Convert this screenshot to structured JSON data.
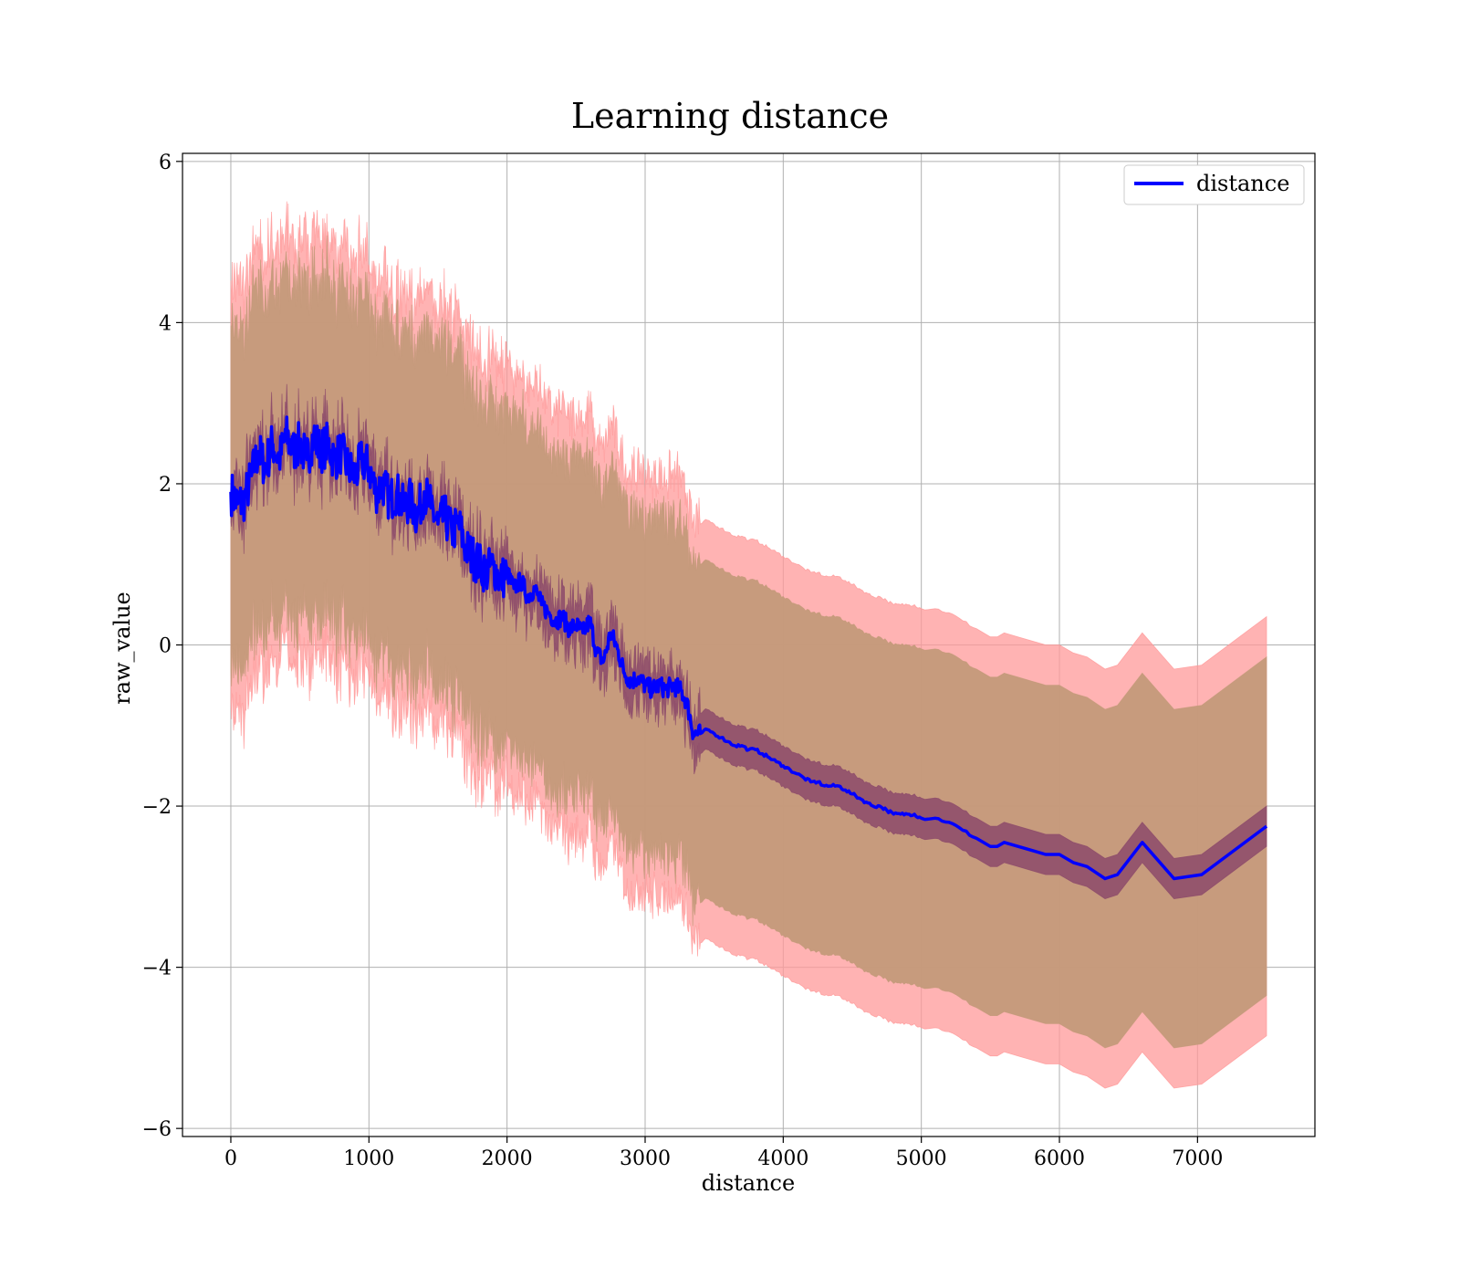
{
  "chart_data": {
    "type": "line",
    "title": "Learning distance",
    "xlabel": "distance",
    "ylabel": "raw_value",
    "xlim": [
      -350,
      7850
    ],
    "ylim": [
      -6.1,
      6.1
    ],
    "xticks": [
      0,
      1000,
      2000,
      3000,
      4000,
      5000,
      6000,
      7000
    ],
    "xtick_labels": [
      "0",
      "1000",
      "2000",
      "3000",
      "4000",
      "5000",
      "6000",
      "7000"
    ],
    "yticks": [
      -6,
      -4,
      -2,
      0,
      2,
      4,
      6
    ],
    "ytick_labels": [
      "−6",
      "−4",
      "−2",
      "0",
      "2",
      "4",
      "6"
    ],
    "grid": true,
    "legend_position": "top-right",
    "colors": {
      "line": "#0000ff",
      "outer_band": "#ff9999",
      "middle_band": "#c49a7a",
      "inner_band": "#8c4a6a"
    },
    "series": [
      {
        "name": "distance",
        "x": [
          0,
          50,
          100,
          150,
          200,
          250,
          300,
          350,
          400,
          450,
          500,
          550,
          600,
          650,
          700,
          750,
          800,
          850,
          900,
          950,
          1000,
          1050,
          1100,
          1150,
          1200,
          1250,
          1300,
          1350,
          1400,
          1450,
          1500,
          1550,
          1600,
          1650,
          1700,
          1750,
          1800,
          1850,
          1900,
          1950,
          2000,
          2050,
          2100,
          2150,
          2200,
          2250,
          2300,
          2350,
          2400,
          2450,
          2500,
          2550,
          2600,
          2650,
          2700,
          2750,
          2800,
          2850,
          2900,
          2950,
          3000,
          3050,
          3100,
          3150,
          3200,
          3250,
          3300,
          3350,
          3400,
          3450,
          3500,
          3550,
          3600,
          3650,
          3700,
          3750,
          3800,
          3850,
          3900,
          3950,
          4000,
          4050,
          4100,
          4150,
          4200,
          4250,
          4300,
          4350,
          4400,
          4450,
          4500,
          4550,
          4600,
          4650,
          4700,
          4750,
          4800,
          4850,
          4900,
          4950,
          5000,
          5100,
          5200,
          5300,
          5400,
          5500,
          5550,
          5600,
          5700,
          5800,
          5900,
          6000,
          6100,
          6200,
          6330,
          6420,
          6600,
          6830,
          7030,
          7500
        ],
        "y": [
          1.9,
          1.75,
          1.8,
          2.1,
          2.4,
          2.2,
          2.5,
          2.3,
          2.6,
          2.4,
          2.5,
          2.3,
          2.6,
          2.4,
          2.5,
          2.3,
          2.4,
          2.2,
          2.1,
          2.3,
          2.2,
          1.9,
          2.0,
          1.8,
          1.9,
          1.7,
          1.8,
          1.6,
          1.9,
          1.7,
          1.5,
          1.6,
          1.4,
          1.5,
          1.2,
          1.1,
          1.0,
          0.9,
          1.0,
          0.8,
          0.9,
          0.7,
          0.8,
          0.6,
          0.7,
          0.5,
          0.4,
          0.3,
          0.35,
          0.2,
          0.25,
          0.15,
          0.3,
          -0.1,
          -0.2,
          0.15,
          -0.05,
          -0.35,
          -0.45,
          -0.4,
          -0.5,
          -0.55,
          -0.5,
          -0.55,
          -0.5,
          -0.55,
          -0.7,
          -1.1,
          -1.1,
          -1.05,
          -1.1,
          -1.15,
          -1.2,
          -1.25,
          -1.25,
          -1.3,
          -1.3,
          -1.35,
          -1.4,
          -1.45,
          -1.5,
          -1.55,
          -1.6,
          -1.65,
          -1.7,
          -1.7,
          -1.75,
          -1.75,
          -1.75,
          -1.8,
          -1.85,
          -1.9,
          -1.95,
          -2.0,
          -2.0,
          -2.05,
          -2.1,
          -2.1,
          -2.1,
          -2.1,
          -2.15,
          -2.15,
          -2.2,
          -2.3,
          -2.4,
          -2.5,
          -2.5,
          -2.45,
          -2.5,
          -2.55,
          -2.6,
          -2.6,
          -2.7,
          -2.75,
          -2.9,
          -2.85,
          -2.45,
          -2.9,
          -2.85,
          -2.25
        ]
      }
    ]
  }
}
